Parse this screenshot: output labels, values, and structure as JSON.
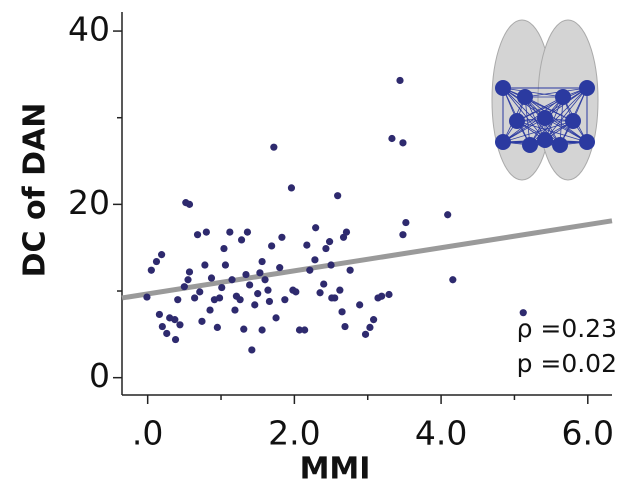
{
  "chart_data": {
    "type": "scatter",
    "x_label": "MMI",
    "y_label": "DC of DAN",
    "xlim": [
      -0.35,
      6.33
    ],
    "ylim": [
      -2,
      42.2
    ],
    "xticks": [
      {
        "value": 0,
        "label": ".0"
      },
      {
        "value": 2,
        "label": "2.0"
      },
      {
        "value": 4,
        "label": "4.0"
      },
      {
        "value": 6,
        "label": "6.0"
      }
    ],
    "xminorticks": [
      1,
      3,
      5
    ],
    "yticks": [
      0,
      20,
      40
    ],
    "yminorticks": [
      10,
      30
    ],
    "color": "#2e2a6e",
    "fit": {
      "color": "#9a9a9a",
      "x": [
        -0.35,
        6.33
      ],
      "y": [
        9.2,
        18.1
      ]
    },
    "annotations": [
      "ρ =0.23",
      "p =0.02"
    ],
    "x": [
      -0.01,
      0.05,
      0.12,
      0.19,
      0.16,
      0.2,
      0.26,
      0.3,
      0.37,
      0.38,
      0.41,
      0.44,
      0.5,
      0.55,
      0.52,
      0.57,
      0.57,
      0.64,
      0.68,
      0.71,
      0.74,
      0.78,
      0.8,
      0.85,
      0.87,
      0.91,
      0.95,
      0.98,
      1.01,
      1.04,
      1.06,
      1.12,
      1.15,
      1.19,
      1.21,
      1.26,
      1.28,
      1.31,
      1.34,
      1.36,
      1.39,
      1.42,
      1.46,
      1.5,
      1.53,
      1.56,
      1.56,
      1.6,
      1.64,
      1.66,
      1.69,
      1.72,
      1.75,
      1.8,
      1.83,
      1.87,
      1.96,
      1.98,
      2.02,
      2.07,
      2.14,
      2.17,
      2.21,
      2.28,
      2.29,
      2.35,
      2.4,
      2.43,
      2.48,
      2.5,
      2.51,
      2.55,
      2.59,
      2.62,
      2.65,
      2.67,
      2.69,
      2.71,
      2.76,
      2.89,
      2.97,
      3.03,
      3.08,
      3.14,
      3.19,
      3.29,
      3.33,
      3.44,
      3.48,
      3.48,
      3.52,
      4.09,
      4.16,
      5.12
    ],
    "y": [
      9.3,
      12.4,
      13.4,
      14.2,
      7.3,
      5.9,
      5.1,
      6.9,
      6.7,
      4.4,
      9.0,
      6.1,
      10.5,
      11.3,
      20.2,
      20.0,
      12.2,
      9.2,
      16.5,
      9.9,
      6.5,
      13.0,
      16.8,
      7.8,
      11.5,
      9.0,
      5.8,
      9.2,
      10.4,
      14.9,
      13.0,
      16.8,
      11.3,
      7.8,
      9.4,
      9.0,
      15.9,
      5.6,
      11.9,
      16.8,
      10.7,
      3.2,
      8.4,
      9.7,
      12.1,
      13.4,
      5.5,
      11.3,
      10.1,
      8.8,
      15.2,
      26.6,
      6.9,
      12.7,
      16.2,
      9.0,
      21.9,
      10.1,
      9.9,
      5.5,
      5.5,
      15.3,
      12.4,
      13.6,
      17.3,
      9.8,
      10.8,
      14.9,
      15.7,
      13.0,
      9.2,
      9.2,
      21.0,
      10.1,
      7.6,
      16.2,
      5.9,
      16.8,
      12.4,
      8.4,
      5.0,
      5.8,
      6.7,
      9.2,
      9.4,
      9.6,
      27.6,
      34.3,
      27.1,
      16.5,
      17.9,
      18.8,
      11.3,
      7.5
    ]
  }
}
